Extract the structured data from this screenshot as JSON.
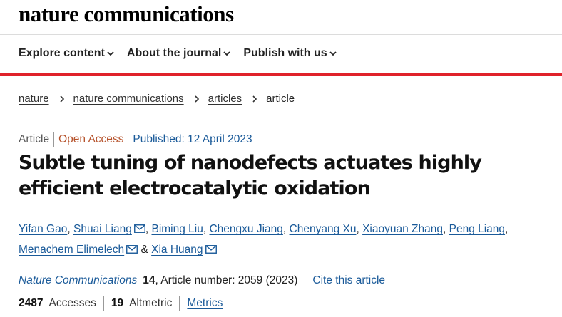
{
  "site": {
    "logo_text": "nature communications"
  },
  "nav": {
    "items": [
      {
        "label": "Explore content"
      },
      {
        "label": "About the journal"
      },
      {
        "label": "Publish with us"
      }
    ]
  },
  "breadcrumb": {
    "items": [
      "nature",
      "nature communications",
      "articles"
    ],
    "current": "article"
  },
  "article": {
    "type": "Article",
    "access": "Open Access",
    "published": "Published: 12 April 2023",
    "title": "Subtle tuning of nanodefects actuates highly efficient electrocatalytic oxidation",
    "authors": [
      {
        "name": "Yifan Gao",
        "sep": ", ",
        "email": false
      },
      {
        "name": "Shuai Liang",
        "sep": ", ",
        "email": true
      },
      {
        "name": "Biming Liu",
        "sep": ", ",
        "email": false
      },
      {
        "name": "Chengxu Jiang",
        "sep": ", ",
        "email": false
      },
      {
        "name": "Chenyang Xu",
        "sep": ", ",
        "email": false
      },
      {
        "name": "Xiaoyuan Zhang",
        "sep": ", ",
        "email": false
      },
      {
        "name": "Peng Liang",
        "sep": ", ",
        "email": false
      },
      {
        "name": "Menachem Elimelech",
        "sep": " & ",
        "email": true
      },
      {
        "name": "Xia Huang",
        "sep": "",
        "email": true
      }
    ],
    "journal": "Nature Communications",
    "volume": "14",
    "article_number_text": ", Article number: 2059 (2023)",
    "cite_label": "Cite this article"
  },
  "metrics": {
    "accesses_value": "2487",
    "accesses_label": "Accesses",
    "altmetric_value": "19",
    "altmetric_label": "Altmetric",
    "metrics_link": "Metrics"
  },
  "colors": {
    "accent_red": "#e0222a",
    "link_blue": "#1a5a99",
    "open_access": "#b6522b"
  },
  "icons": {
    "nav_dropdown": "chevron-down-icon",
    "crumb_separator": "chevron-right-icon",
    "author_contact": "email-icon"
  }
}
